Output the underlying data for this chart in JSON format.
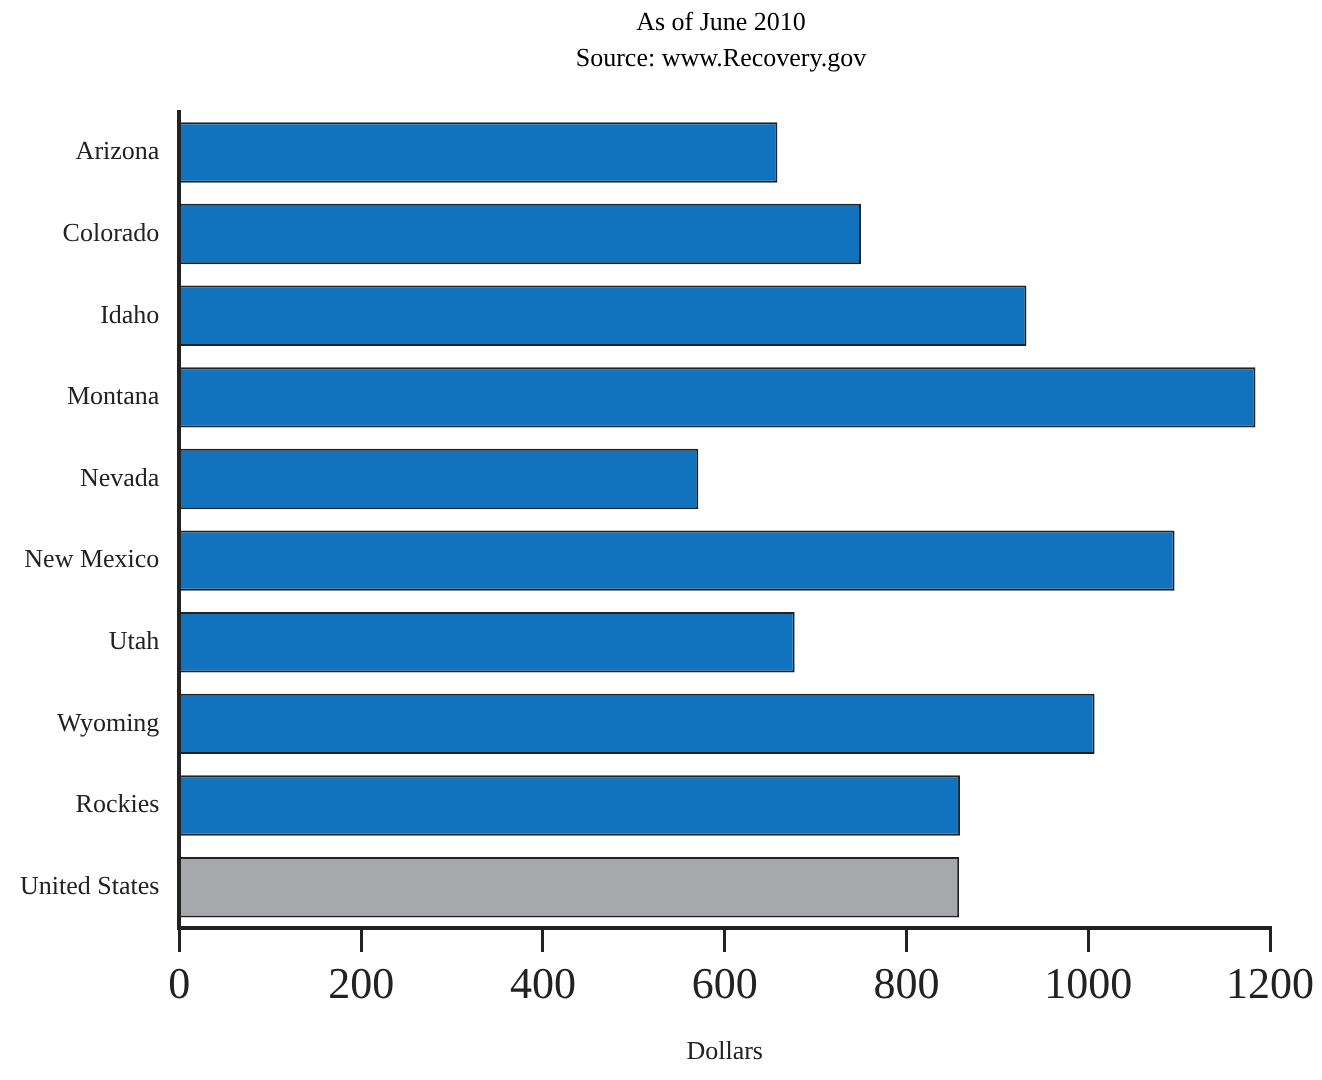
{
  "chart_data": {
    "type": "bar",
    "orientation": "horizontal",
    "subtitle": "As of June 2010",
    "annotations": [
      "Source: www.Recovery.gov"
    ],
    "categories": [
      "Arizona",
      "Colorado",
      "Idaho",
      "Montana",
      "Nevada",
      "New Mexico",
      "Utah",
      "Wyoming",
      "Rockies",
      "United States"
    ],
    "values": [
      658,
      750,
      932,
      1184,
      571,
      1095,
      677,
      1007,
      859,
      858
    ],
    "colors": [
      "#1172be",
      "#1172be",
      "#1172be",
      "#1172be",
      "#1172be",
      "#1172be",
      "#1172be",
      "#1172be",
      "#1172be",
      "#a7a8ac"
    ],
    "xlabel": "Dollars",
    "xlim": [
      0,
      1200
    ],
    "xticks": [
      0,
      200,
      400,
      600,
      800,
      1000,
      1200
    ],
    "grid": false,
    "legend": false
  }
}
